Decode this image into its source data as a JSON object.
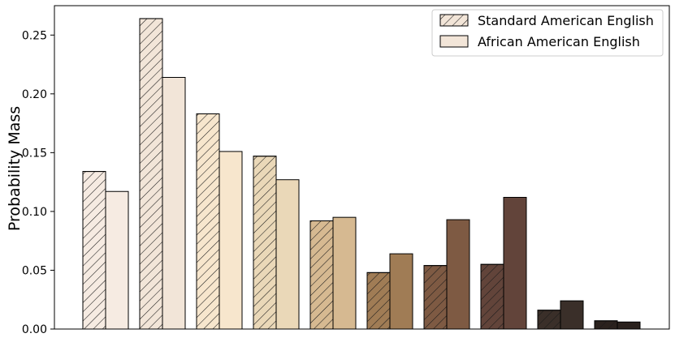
{
  "chart_data": {
    "type": "bar",
    "title": "",
    "xlabel": "",
    "ylabel": "Probability Mass",
    "ylim": [
      0,
      0.275
    ],
    "yticks": [
      "0.00",
      "0.05",
      "0.10",
      "0.15",
      "0.20",
      "0.25"
    ],
    "categories": [
      "",
      "",
      "",
      "",
      "",
      "",
      "",
      "",
      "",
      ""
    ],
    "bar_colors": [
      "#f6ebe2",
      "#f2e5d8",
      "#f7e6cd",
      "#ead8b8",
      "#d6b991",
      "#a07c55",
      "#7e5a43",
      "#62443a",
      "#3a2f29",
      "#2a211d"
    ],
    "series": [
      {
        "name": "Standard American English",
        "pattern": "hatched",
        "values": [
          0.134,
          0.264,
          0.183,
          0.147,
          0.092,
          0.048,
          0.054,
          0.055,
          0.016,
          0.007
        ]
      },
      {
        "name": "African American English",
        "pattern": "solid",
        "values": [
          0.117,
          0.214,
          0.151,
          0.127,
          0.095,
          0.064,
          0.093,
          0.112,
          0.024,
          0.006
        ]
      }
    ],
    "legend": {
      "placement": "top-right",
      "swatch_color": "#f2e5d8"
    },
    "grid": false
  }
}
